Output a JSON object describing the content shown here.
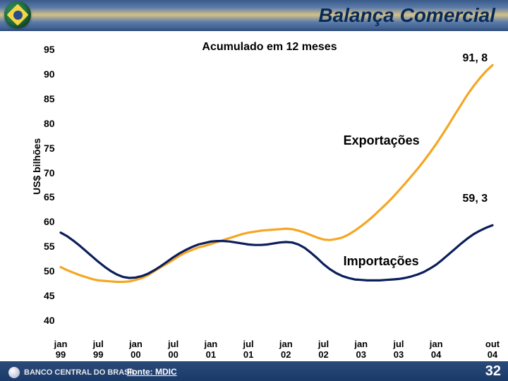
{
  "title": "Balança Comercial",
  "subtitle": "Acumulado em 12 meses",
  "yaxis_label": "US$ bilhões",
  "source": "Fonte: MDIC",
  "brand": "BANCO CENTRAL DO BRASIL",
  "slide_number": "32",
  "chart": {
    "type": "line",
    "ylim": [
      40,
      95
    ],
    "yticks": [
      40,
      45,
      50,
      55,
      60,
      65,
      70,
      75,
      80,
      85,
      90,
      95
    ],
    "xticks": [
      "jan\n99",
      "jul\n99",
      "jan\n00",
      "jul\n00",
      "jan\n01",
      "jul\n01",
      "jan\n02",
      "jul\n02",
      "jan\n03",
      "jul\n03",
      "jan\n04",
      "out\n04"
    ],
    "x_index_range": [
      0,
      69
    ],
    "background_color": "#ffffff",
    "grid": false,
    "line_width": 3.2,
    "series": [
      {
        "name": "Exportações",
        "label": "Exportações",
        "color": "#f5a623",
        "label_pos": {
          "x_frac": 0.72,
          "y_val": 76.5
        },
        "end_value": "91, 8",
        "end_value_pos": {
          "x_frac": 0.96,
          "y_val": 93
        },
        "y": [
          50.8,
          50.2,
          49.7,
          49.2,
          48.8,
          48.4,
          48.1,
          48.0,
          47.9,
          47.8,
          47.8,
          47.9,
          48.2,
          48.6,
          49.2,
          50.0,
          50.8,
          51.5,
          52.3,
          53.1,
          53.8,
          54.3,
          54.8,
          55.1,
          55.5,
          55.9,
          56.3,
          56.7,
          57.1,
          57.5,
          57.8,
          58.0,
          58.2,
          58.3,
          58.4,
          58.5,
          58.6,
          58.5,
          58.2,
          57.8,
          57.3,
          56.8,
          56.4,
          56.3,
          56.5,
          56.8,
          57.4,
          58.2,
          59.1,
          60.1,
          61.2,
          62.4,
          63.6,
          64.9,
          66.3,
          67.7,
          69.2,
          70.7,
          72.3,
          74.0,
          75.8,
          77.7,
          79.7,
          81.8,
          83.8,
          85.8,
          87.6,
          89.2,
          90.6,
          91.8
        ]
      },
      {
        "name": "Importações",
        "label": "Importações",
        "color": "#0a1e5a",
        "label_pos": {
          "x_frac": 0.72,
          "y_val": 52
        },
        "end_value": "59, 3",
        "end_value_pos": {
          "x_frac": 0.96,
          "y_val": 64.5
        },
        "y": [
          57.8,
          57.1,
          56.2,
          55.2,
          54.1,
          53.0,
          51.9,
          50.9,
          50.0,
          49.3,
          48.8,
          48.6,
          48.7,
          49.0,
          49.5,
          50.2,
          51.0,
          51.9,
          52.8,
          53.6,
          54.3,
          54.9,
          55.4,
          55.7,
          56.0,
          56.1,
          56.1,
          56.0,
          55.8,
          55.6,
          55.4,
          55.3,
          55.3,
          55.4,
          55.6,
          55.8,
          55.9,
          55.8,
          55.4,
          54.7,
          53.7,
          52.6,
          51.4,
          50.4,
          49.6,
          49.0,
          48.6,
          48.3,
          48.2,
          48.1,
          48.1,
          48.1,
          48.2,
          48.3,
          48.4,
          48.6,
          48.9,
          49.3,
          49.8,
          50.5,
          51.3,
          52.3,
          53.4,
          54.5,
          55.6,
          56.6,
          57.5,
          58.2,
          58.8,
          59.3
        ]
      }
    ]
  }
}
